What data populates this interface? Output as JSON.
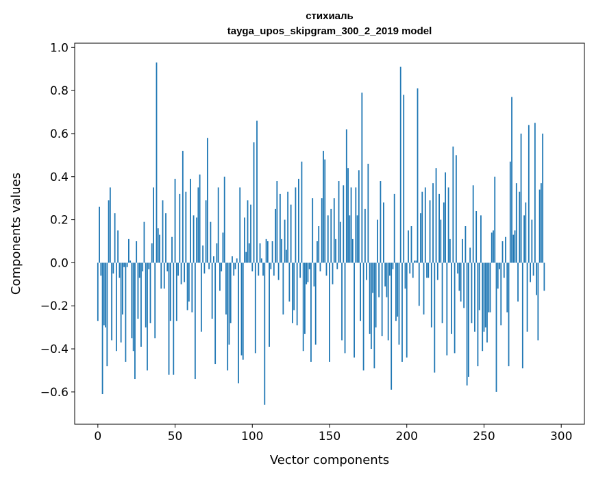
{
  "chart_data": {
    "type": "bar",
    "title": "стихиаль",
    "subtitle": "tayga_upos_skipgram_300_2_2019 model",
    "xlabel": "Vector components",
    "ylabel": "Components values",
    "xlim": [
      -15,
      315
    ],
    "ylim": [
      -0.75,
      1.02
    ],
    "xticks": [
      0,
      50,
      100,
      150,
      200,
      250,
      300
    ],
    "yticks": [
      -0.6,
      -0.4,
      -0.2,
      0.0,
      0.2,
      0.4,
      0.6,
      0.8,
      1.0
    ],
    "ytick_labels": [
      "−0.6",
      "−0.4",
      "−0.2",
      "0.0",
      "0.2",
      "0.4",
      "0.6",
      "0.8",
      "1.0"
    ],
    "grid": false,
    "bar_color": "#1f77b4",
    "values": [
      -0.27,
      0.26,
      -0.06,
      -0.61,
      -0.29,
      -0.3,
      -0.48,
      0.29,
      0.35,
      -0.36,
      -0.05,
      0.23,
      -0.41,
      0.15,
      -0.07,
      -0.37,
      -0.24,
      -0.02,
      -0.46,
      -0.02,
      0.11,
      0.01,
      -0.35,
      -0.41,
      -0.54,
      0.1,
      -0.26,
      -0.07,
      -0.39,
      -0.04,
      0.19,
      -0.3,
      -0.5,
      -0.03,
      -0.28,
      0.09,
      0.35,
      -0.35,
      0.93,
      0.16,
      0.13,
      -0.12,
      0.29,
      -0.12,
      0.23,
      -0.04,
      -0.52,
      -0.27,
      0.12,
      -0.52,
      0.39,
      -0.27,
      -0.06,
      0.32,
      -0.1,
      0.52,
      -0.09,
      0.33,
      -0.22,
      -0.18,
      0.39,
      -0.23,
      0.22,
      -0.54,
      0.21,
      0.35,
      0.41,
      -0.32,
      0.08,
      -0.05,
      0.29,
      0.58,
      -0.03,
      0.19,
      -0.26,
      0.03,
      -0.47,
      0.09,
      0.35,
      -0.13,
      -0.04,
      0.14,
      0.4,
      -0.24,
      -0.5,
      -0.38,
      -0.28,
      0.03,
      -0.06,
      -0.03,
      0.02,
      -0.56,
      0.35,
      -0.43,
      -0.45,
      0.21,
      0.05,
      0.29,
      0.09,
      0.27,
      -0.04,
      0.56,
      -0.42,
      0.66,
      -0.06,
      0.09,
      0.02,
      -0.06,
      -0.66,
      0.11,
      0.1,
      -0.39,
      -0.03,
      0.1,
      -0.06,
      0.25,
      0.38,
      -0.08,
      0.32,
      0.11,
      -0.24,
      0.2,
      0.06,
      0.33,
      -0.18,
      0.27,
      -0.28,
      -0.22,
      0.35,
      -0.29,
      0.39,
      -0.07,
      0.47,
      -0.41,
      -0.33,
      -0.1,
      -0.09,
      -0.03,
      -0.46,
      0.3,
      -0.11,
      -0.38,
      0.1,
      0.17,
      -0.04,
      0.3,
      0.52,
      0.48,
      -0.06,
      0.22,
      -0.46,
      0.25,
      -0.1,
      0.3,
      0.11,
      -0.03,
      0.38,
      0.19,
      -0.36,
      0.36,
      -0.42,
      0.62,
      0.44,
      0.22,
      0.35,
      0.11,
      -0.44,
      0.35,
      0.22,
      0.43,
      -0.27,
      0.79,
      -0.5,
      0.25,
      -0.08,
      0.46,
      -0.33,
      -0.4,
      -0.14,
      -0.49,
      -0.3,
      0.2,
      -0.16,
      0.38,
      -0.34,
      0.28,
      -0.11,
      -0.16,
      -0.36,
      -0.06,
      -0.59,
      -0.03,
      0.32,
      -0.27,
      -0.25,
      -0.38,
      0.91,
      -0.46,
      0.78,
      -0.12,
      -0.44,
      0.15,
      -0.05,
      0.17,
      -0.07,
      0.01,
      0.01,
      0.81,
      -0.2,
      0.23,
      0.33,
      -0.24,
      0.35,
      -0.07,
      -0.07,
      0.29,
      -0.3,
      0.37,
      -0.51,
      0.44,
      -0.08,
      0.32,
      0.2,
      -0.28,
      0.28,
      0.42,
      -0.43,
      0.35,
      0.11,
      -0.33,
      0.54,
      -0.42,
      0.5,
      -0.05,
      -0.13,
      -0.18,
      0.11,
      -0.21,
      0.17,
      -0.57,
      -0.53,
      0.07,
      -0.28,
      0.36,
      -0.32,
      0.24,
      -0.48,
      -0.22,
      0.22,
      -0.41,
      -0.32,
      -0.3,
      -0.37,
      -0.23,
      -0.23,
      0.14,
      0.15,
      0.4,
      -0.6,
      -0.12,
      -0.03,
      -0.29,
      0.1,
      -0.07,
      0.12,
      -0.23,
      -0.48,
      0.47,
      0.77,
      0.13,
      0.15,
      0.37,
      -0.18,
      0.33,
      0.6,
      -0.49,
      0.22,
      0.28,
      -0.32,
      0.64,
      -0.09,
      0.2,
      -0.06,
      0.65,
      -0.15,
      -0.36,
      0.34,
      0.37,
      0.6,
      -0.13
    ]
  }
}
